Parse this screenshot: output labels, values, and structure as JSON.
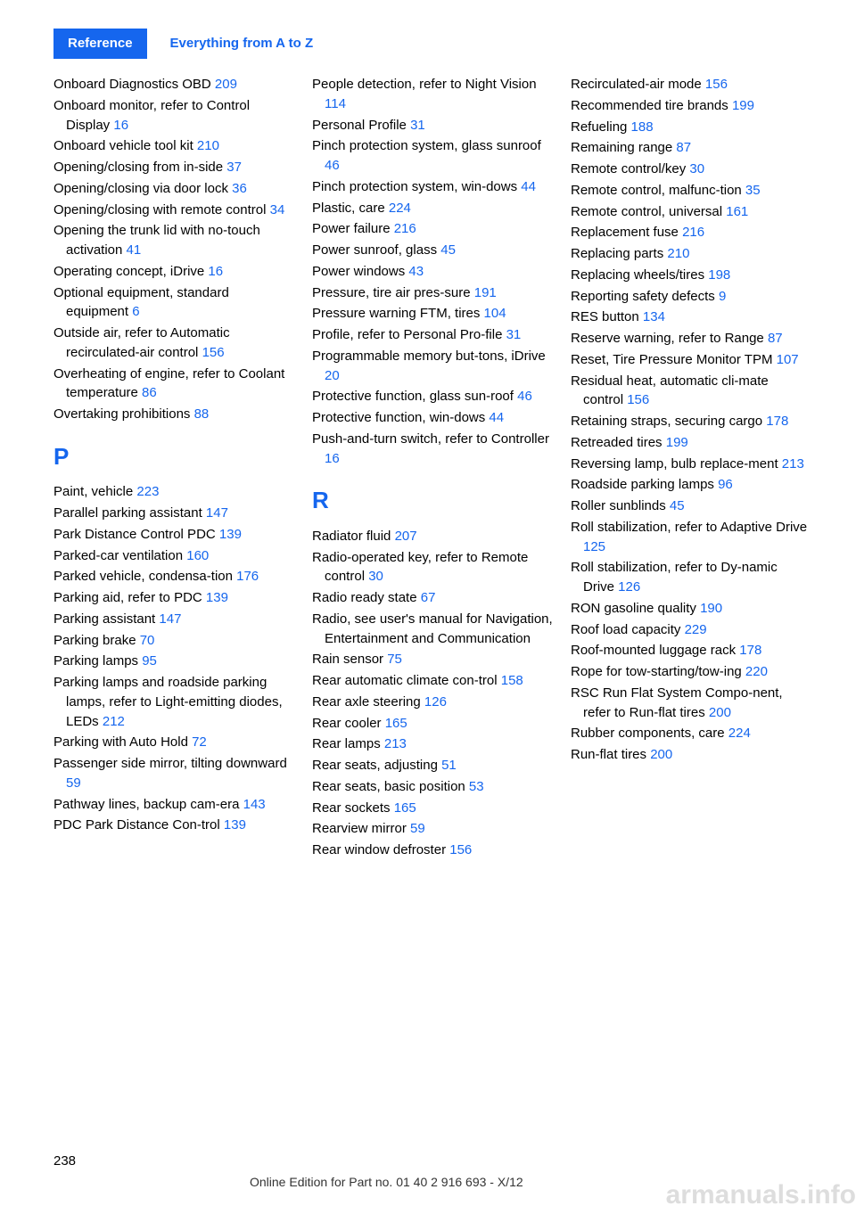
{
  "header": {
    "tab": "Reference",
    "breadcrumb": "Everything from A to Z"
  },
  "columns": [
    {
      "items": [
        {
          "type": "entry",
          "text": "Onboard Diagnostics OBD ",
          "pg": "209"
        },
        {
          "type": "entry",
          "text": "Onboard monitor, refer to Control Display ",
          "pg": "16"
        },
        {
          "type": "entry",
          "text": "Onboard vehicle tool kit ",
          "pg": "210"
        },
        {
          "type": "entry",
          "text": "Opening/closing from in‐side ",
          "pg": "37"
        },
        {
          "type": "entry",
          "text": "Opening/closing via door lock ",
          "pg": "36"
        },
        {
          "type": "entry",
          "text": "Opening/closing with remote control ",
          "pg": "34"
        },
        {
          "type": "entry",
          "text": "Opening the trunk lid with no-touch activation ",
          "pg": "41"
        },
        {
          "type": "entry",
          "text": "Operating concept, iDrive ",
          "pg": "16"
        },
        {
          "type": "entry",
          "text": "Optional equipment, standard equipment ",
          "pg": "6"
        },
        {
          "type": "entry",
          "text": "Outside air, refer to Automatic recirculated-air control ",
          "pg": "156"
        },
        {
          "type": "entry",
          "text": "Overheating of engine, refer to Coolant temperature ",
          "pg": "86"
        },
        {
          "type": "entry",
          "text": "Overtaking prohibitions ",
          "pg": "88"
        },
        {
          "type": "letter",
          "text": "P"
        },
        {
          "type": "entry",
          "text": "Paint, vehicle ",
          "pg": "223"
        },
        {
          "type": "entry",
          "text": "Parallel parking assistant ",
          "pg": "147"
        },
        {
          "type": "entry",
          "text": "Park Distance Control PDC ",
          "pg": "139"
        },
        {
          "type": "entry",
          "text": "Parked-car ventilation ",
          "pg": "160"
        },
        {
          "type": "entry",
          "text": "Parked vehicle, condensa‐tion ",
          "pg": "176"
        },
        {
          "type": "entry",
          "text": "Parking aid, refer to PDC ",
          "pg": "139"
        },
        {
          "type": "entry",
          "text": "Parking assistant ",
          "pg": "147"
        },
        {
          "type": "entry",
          "text": "Parking brake ",
          "pg": "70"
        },
        {
          "type": "entry",
          "text": "Parking lamps ",
          "pg": "95"
        },
        {
          "type": "entry",
          "text": "Parking lamps and roadside parking lamps, refer to Light-emitting diodes, LEDs ",
          "pg": "212"
        },
        {
          "type": "entry",
          "text": "Parking with Auto Hold ",
          "pg": "72"
        },
        {
          "type": "entry",
          "text": "Passenger side mirror, tilting downward ",
          "pg": "59"
        },
        {
          "type": "entry",
          "text": "Pathway lines, backup cam‐era ",
          "pg": "143"
        },
        {
          "type": "entry",
          "text": "PDC Park Distance Con‐trol ",
          "pg": "139"
        }
      ]
    },
    {
      "items": [
        {
          "type": "entry",
          "text": "People detection, refer to Night Vision ",
          "pg": "114"
        },
        {
          "type": "entry",
          "text": "Personal Profile ",
          "pg": "31"
        },
        {
          "type": "entry",
          "text": "Pinch protection system, glass sunroof ",
          "pg": "46"
        },
        {
          "type": "entry",
          "text": "Pinch protection system, win‐dows ",
          "pg": "44"
        },
        {
          "type": "entry",
          "text": "Plastic, care ",
          "pg": "224"
        },
        {
          "type": "entry",
          "text": "Power failure ",
          "pg": "216"
        },
        {
          "type": "entry",
          "text": "Power sunroof, glass ",
          "pg": "45"
        },
        {
          "type": "entry",
          "text": "Power windows ",
          "pg": "43"
        },
        {
          "type": "entry",
          "text": "Pressure, tire air pres‐sure ",
          "pg": "191"
        },
        {
          "type": "entry",
          "text": "Pressure warning FTM, tires ",
          "pg": "104"
        },
        {
          "type": "entry",
          "text": "Profile, refer to Personal Pro‐file ",
          "pg": "31"
        },
        {
          "type": "entry",
          "text": "Programmable memory but‐tons, iDrive ",
          "pg": "20"
        },
        {
          "type": "entry",
          "text": "Protective function, glass sun‐roof ",
          "pg": "46"
        },
        {
          "type": "entry",
          "text": "Protective function, win‐dows ",
          "pg": "44"
        },
        {
          "type": "entry",
          "text": "Push-and-turn switch, refer to Controller ",
          "pg": "16"
        },
        {
          "type": "letter",
          "text": "R"
        },
        {
          "type": "entry",
          "text": "Radiator fluid ",
          "pg": "207"
        },
        {
          "type": "entry",
          "text": "Radio-operated key, refer to Remote control ",
          "pg": "30"
        },
        {
          "type": "entry",
          "text": "Radio ready state ",
          "pg": "67"
        },
        {
          "type": "entry",
          "text": "Radio, see user's manual for Navigation, Entertainment and Communication",
          "pg": ""
        },
        {
          "type": "entry",
          "text": "Rain sensor ",
          "pg": "75"
        },
        {
          "type": "entry",
          "text": "Rear automatic climate con‐trol ",
          "pg": "158"
        },
        {
          "type": "entry",
          "text": "Rear axle steering ",
          "pg": "126"
        },
        {
          "type": "entry",
          "text": "Rear cooler ",
          "pg": "165"
        },
        {
          "type": "entry",
          "text": "Rear lamps ",
          "pg": "213"
        },
        {
          "type": "entry",
          "text": "Rear seats, adjusting ",
          "pg": "51"
        },
        {
          "type": "entry",
          "text": "Rear seats, basic position ",
          "pg": "53"
        },
        {
          "type": "entry",
          "text": "Rear sockets ",
          "pg": "165"
        },
        {
          "type": "entry",
          "text": "Rearview mirror ",
          "pg": "59"
        },
        {
          "type": "entry",
          "text": "Rear window defroster ",
          "pg": "156"
        }
      ]
    },
    {
      "items": [
        {
          "type": "entry",
          "text": "Recirculated-air mode ",
          "pg": "156"
        },
        {
          "type": "entry",
          "text": "Recommended tire brands ",
          "pg": "199"
        },
        {
          "type": "entry",
          "text": "Refueling ",
          "pg": "188"
        },
        {
          "type": "entry",
          "text": "Remaining range ",
          "pg": "87"
        },
        {
          "type": "entry",
          "text": "Remote control/key ",
          "pg": "30"
        },
        {
          "type": "entry",
          "text": "Remote control, malfunc‐tion ",
          "pg": "35"
        },
        {
          "type": "entry",
          "text": "Remote control, universal ",
          "pg": "161"
        },
        {
          "type": "entry",
          "text": "Replacement fuse ",
          "pg": "216"
        },
        {
          "type": "entry",
          "text": "Replacing parts ",
          "pg": "210"
        },
        {
          "type": "entry",
          "text": "Replacing wheels/tires ",
          "pg": "198"
        },
        {
          "type": "entry",
          "text": "Reporting safety defects ",
          "pg": "9"
        },
        {
          "type": "entry",
          "text": "RES button ",
          "pg": "134"
        },
        {
          "type": "entry",
          "text": "Reserve warning, refer to Range ",
          "pg": "87"
        },
        {
          "type": "entry",
          "text": "Reset, Tire Pressure Monitor TPM ",
          "pg": "107"
        },
        {
          "type": "entry",
          "text": "Residual heat, automatic cli‐mate control ",
          "pg": "156"
        },
        {
          "type": "entry",
          "text": "Retaining straps, securing cargo ",
          "pg": "178"
        },
        {
          "type": "entry",
          "text": "Retreaded tires ",
          "pg": "199"
        },
        {
          "type": "entry",
          "text": "Reversing lamp, bulb replace‐ment ",
          "pg": "213"
        },
        {
          "type": "entry",
          "text": "Roadside parking lamps ",
          "pg": "96"
        },
        {
          "type": "entry",
          "text": "Roller sunblinds ",
          "pg": "45"
        },
        {
          "type": "entry",
          "text": "Roll stabilization, refer to Adaptive Drive ",
          "pg": "125"
        },
        {
          "type": "entry",
          "text": "Roll stabilization, refer to Dy‐namic Drive ",
          "pg": "126"
        },
        {
          "type": "entry",
          "text": "RON gasoline quality ",
          "pg": "190"
        },
        {
          "type": "entry",
          "text": "Roof load capacity ",
          "pg": "229"
        },
        {
          "type": "entry",
          "text": "Roof-mounted luggage rack ",
          "pg": "178"
        },
        {
          "type": "entry",
          "text": "Rope for tow-starting/tow‐ing ",
          "pg": "220"
        },
        {
          "type": "entry",
          "text": "RSC Run Flat System Compo‐nent, refer to Run-flat tires ",
          "pg": "200"
        },
        {
          "type": "entry",
          "text": "Rubber components, care ",
          "pg": "224"
        },
        {
          "type": "entry",
          "text": "Run-flat tires ",
          "pg": "200"
        }
      ]
    }
  ],
  "footer": {
    "page": "238",
    "line": "Online Edition for Part no. 01 40 2 916 693 - X/12",
    "watermark": "armanuals.info"
  },
  "colors": {
    "accent": "#1566ee",
    "text": "#000000",
    "bg": "#ffffff"
  }
}
